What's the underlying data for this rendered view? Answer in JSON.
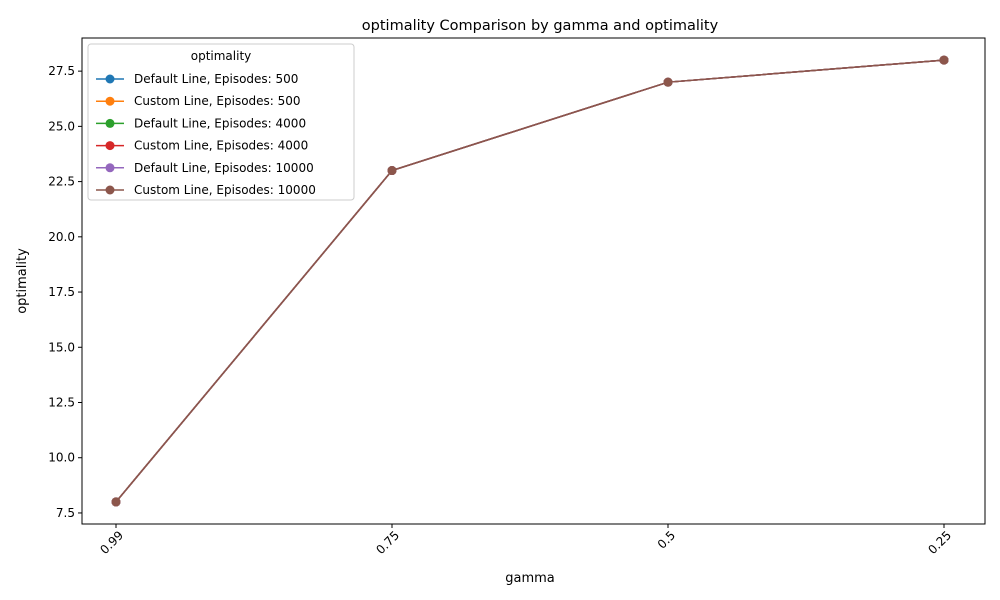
{
  "chart_data": {
    "type": "line",
    "title": "optimality Comparison by gamma and optimality",
    "xlabel": "gamma",
    "ylabel": "optimality",
    "categories": [
      "0.99",
      "0.75",
      "0.5",
      "0.25"
    ],
    "ylim": [
      7.0,
      29.0
    ],
    "yticks": [
      7.5,
      10.0,
      12.5,
      15.0,
      17.5,
      20.0,
      22.5,
      25.0,
      27.5
    ],
    "ytick_labels": [
      "7.5",
      "10.0",
      "12.5",
      "15.0",
      "17.5",
      "20.0",
      "22.5",
      "25.0",
      "27.5"
    ],
    "grid": false,
    "legend": {
      "title": "optimality",
      "placement": "top-left"
    },
    "series": [
      {
        "name": "Default Line, Episodes: 500",
        "color": "#1f77b4",
        "values": [
          8,
          23,
          27,
          28
        ]
      },
      {
        "name": "Custom Line, Episodes: 500",
        "color": "#ff7f0e",
        "values": [
          8,
          23,
          27,
          28
        ]
      },
      {
        "name": "Default Line, Episodes: 4000",
        "color": "#2ca02c",
        "values": [
          8,
          23,
          27,
          28
        ]
      },
      {
        "name": "Custom Line, Episodes: 4000",
        "color": "#d62728",
        "values": [
          8,
          23,
          27,
          28
        ]
      },
      {
        "name": "Default Line, Episodes: 10000",
        "color": "#9467bd",
        "values": [
          8,
          23,
          27,
          28
        ]
      },
      {
        "name": "Custom Line, Episodes: 10000",
        "color": "#8c564b",
        "values": [
          8,
          23,
          27,
          28
        ]
      }
    ]
  }
}
